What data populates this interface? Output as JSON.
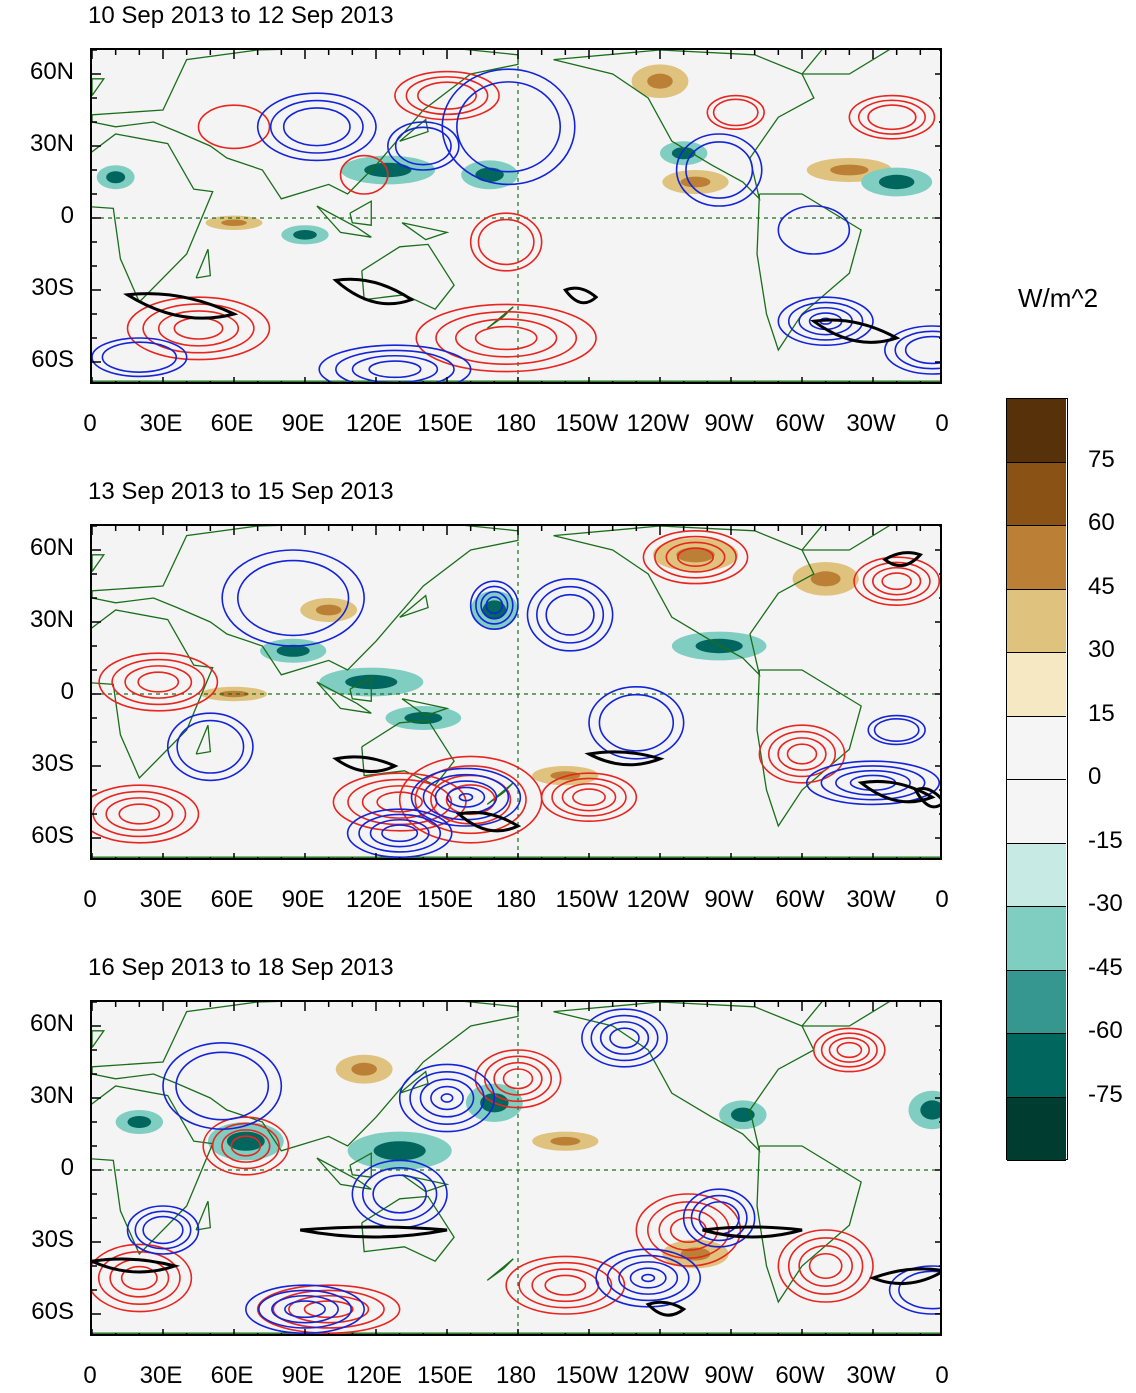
{
  "colorbar": {
    "units": "W/m^2",
    "labels": [
      "75",
      "60",
      "45",
      "30",
      "15",
      "0",
      "-15",
      "-30",
      "-45",
      "-60",
      "-75"
    ],
    "colors": [
      "#563109",
      "#8a5214",
      "#bb8035",
      "#dfc27d",
      "#f6e8c3",
      "#f5f5f5",
      "#f5f5f5",
      "#c7eae5",
      "#80cdc1",
      "#35978f",
      "#01665e",
      "#003c30"
    ]
  },
  "x_ticks": [
    "0",
    "30E",
    "60E",
    "90E",
    "120E",
    "150E",
    "180",
    "150W",
    "120W",
    "90W",
    "60W",
    "30W",
    "0"
  ],
  "y_ticks": [
    "60N",
    "30N",
    "0",
    "30S",
    "60S"
  ],
  "panels": [
    {
      "title": "10 Sep 2013 to 12 Sep 2013"
    },
    {
      "title": "13 Sep 2013 to 15 Sep 2013"
    },
    {
      "title": "16 Sep 2013 to 18 Sep 2013"
    }
  ],
  "colors": {
    "land_outline": "#1a6e1a",
    "positive_contour": "#e8251f",
    "negative_contour": "#1424d8",
    "significance": "#000000"
  }
}
